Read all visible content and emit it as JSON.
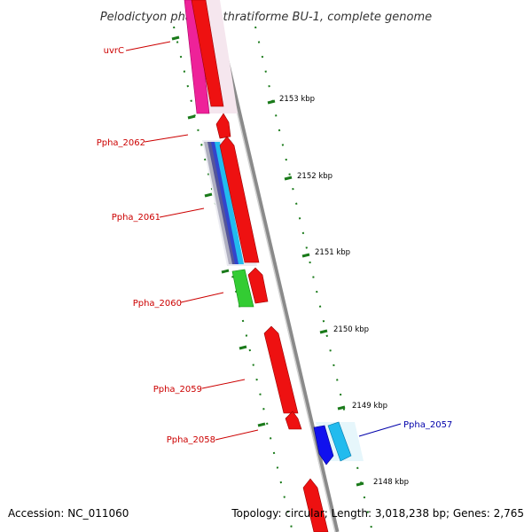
{
  "title": "Pelodictyon phaeoclathratiforme BU-1, complete genome",
  "footer": {
    "accession": "Accession: NC_011060",
    "topology": "Topology: circular; Length: 3,018,238 bp; Genes: 2,765"
  },
  "colors": {
    "backbone": "#8a8a8a",
    "tick": "#1a7a1a",
    "label_red": "#cc0000",
    "label_blue": "#0000aa",
    "gene_red": "#ee1111",
    "gene_magenta": "#ee2299",
    "gene_green": "#33cc33",
    "gene_blue": "#1111ee",
    "gene_cyan": "#22bbee",
    "gene_navy": "#555599"
  },
  "ticks": [
    "2153 kbp",
    "2152 kbp",
    "2151 kbp",
    "2150 kbp",
    "2149 kbp",
    "2148 kbp"
  ],
  "genes": [
    {
      "label": "uvrC",
      "color": "#cc0000"
    },
    {
      "label": "Ppha_2062",
      "color": "#cc0000"
    },
    {
      "label": "Ppha_2061",
      "color": "#cc0000"
    },
    {
      "label": "Ppha_2060",
      "color": "#cc0000"
    },
    {
      "label": "Ppha_2059",
      "color": "#cc0000"
    },
    {
      "label": "Ppha_2058",
      "color": "#cc0000"
    },
    {
      "label": "Ppha_2057",
      "color": "#0000aa"
    }
  ]
}
